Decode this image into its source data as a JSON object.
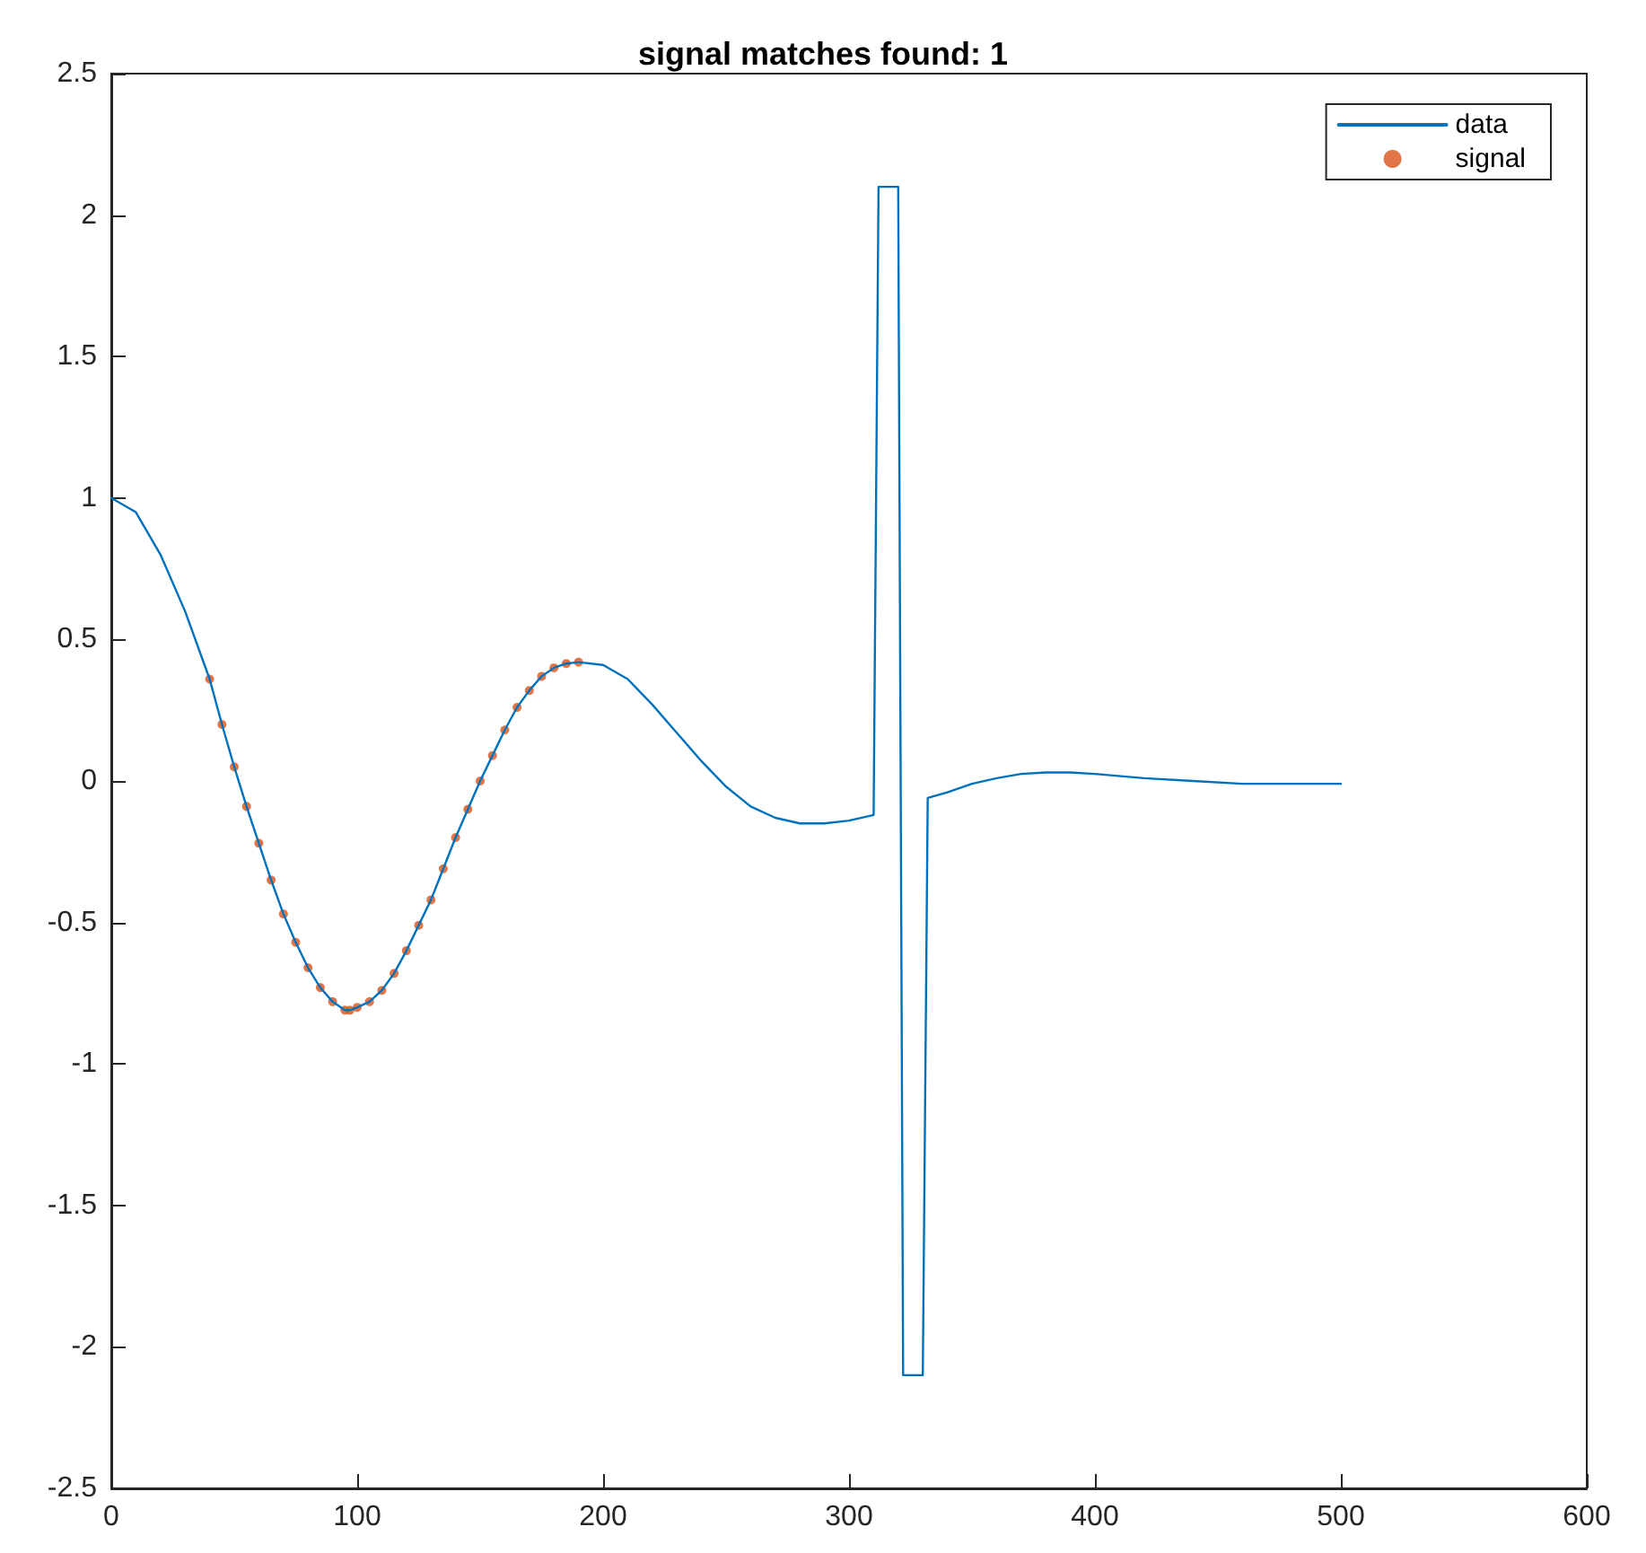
{
  "chart_data": {
    "type": "line",
    "title": "signal matches found: 1",
    "series": [
      {
        "name": "data",
        "color": "#0072bd",
        "marker": "none",
        "x": [
          0,
          10,
          20,
          30,
          40,
          45,
          50,
          55,
          60,
          65,
          70,
          75,
          80,
          85,
          90,
          95,
          97,
          100,
          105,
          110,
          115,
          120,
          125,
          130,
          135,
          140,
          145,
          150,
          155,
          160,
          165,
          170,
          175,
          180,
          185,
          190,
          200,
          210,
          220,
          230,
          240,
          250,
          260,
          270,
          280,
          290,
          300,
          310,
          312,
          320,
          322,
          330,
          332,
          340,
          350,
          360,
          370,
          380,
          390,
          400,
          420,
          440,
          460,
          480,
          500
        ],
        "values": [
          1.0,
          0.95,
          0.8,
          0.6,
          0.36,
          0.2,
          0.05,
          -0.09,
          -0.22,
          -0.35,
          -0.47,
          -0.57,
          -0.66,
          -0.73,
          -0.78,
          -0.81,
          -0.81,
          -0.8,
          -0.78,
          -0.74,
          -0.68,
          -0.6,
          -0.51,
          -0.42,
          -0.31,
          -0.2,
          -0.1,
          0.0,
          0.09,
          0.18,
          0.26,
          0.32,
          0.37,
          0.4,
          0.415,
          0.42,
          0.41,
          0.36,
          0.27,
          0.17,
          0.07,
          -0.02,
          -0.09,
          -0.13,
          -0.15,
          -0.15,
          -0.14,
          -0.12,
          2.1,
          2.1,
          -2.1,
          -2.1,
          -0.06,
          -0.04,
          -0.01,
          0.01,
          0.025,
          0.03,
          0.03,
          0.025,
          0.01,
          0.0,
          -0.01,
          -0.01,
          -0.01
        ]
      },
      {
        "name": "signal",
        "type": "scatter",
        "color": "#d95319",
        "marker": "circle",
        "x": [
          40,
          45,
          50,
          55,
          60,
          65,
          70,
          75,
          80,
          85,
          90,
          95,
          97,
          100,
          105,
          110,
          115,
          120,
          125,
          130,
          135,
          140,
          145,
          150,
          155,
          160,
          165,
          170,
          175,
          180,
          185,
          190
        ],
        "values": [
          0.36,
          0.2,
          0.05,
          -0.09,
          -0.22,
          -0.35,
          -0.47,
          -0.57,
          -0.66,
          -0.73,
          -0.78,
          -0.81,
          -0.81,
          -0.8,
          -0.78,
          -0.74,
          -0.68,
          -0.6,
          -0.51,
          -0.42,
          -0.31,
          -0.2,
          -0.1,
          0.0,
          0.09,
          0.18,
          0.26,
          0.32,
          0.37,
          0.4,
          0.415,
          0.42
        ]
      }
    ],
    "xlim": [
      0,
      600
    ],
    "xticks": [
      0,
      100,
      200,
      300,
      400,
      500,
      600
    ],
    "ylim": [
      -2.5,
      2.5
    ],
    "yticks": [
      -2.5,
      -2,
      -1.5,
      -1,
      -0.5,
      0,
      0.5,
      1,
      1.5,
      2,
      2.5
    ],
    "grid": false,
    "legend": "top right",
    "line_style": "solid"
  }
}
